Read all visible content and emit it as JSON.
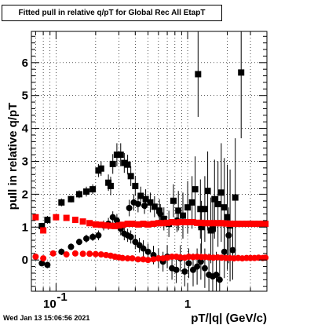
{
  "window": {
    "stamp": "Wed Jan 13 15:06:56 2021"
  },
  "chart_data": {
    "type": "scatter",
    "title": "Fitted pull in relative q/pT  for Global Rec All EtapT",
    "xlabel": "pT/|q| (GeV/c)",
    "ylabel": "pull in relative q/pT",
    "xscale": "log",
    "xlim": [
      0.065,
      4.0
    ],
    "ylim": [
      -0.95,
      6.95
    ],
    "xticks": [
      {
        "v": 0.1,
        "label": "10",
        "exp": "-1"
      },
      {
        "v": 1,
        "label": "1",
        "exp": ""
      }
    ],
    "yticks": [
      0,
      1,
      2,
      3,
      4,
      5,
      6
    ],
    "grid": true,
    "series": [
      {
        "marker": "square",
        "color": "#000000",
        "points": [
          [
            0.078,
            1.03,
            0.1
          ],
          [
            0.086,
            1.22,
            0.12
          ],
          [
            0.11,
            1.75,
            0.12
          ],
          [
            0.13,
            1.85,
            0.1
          ],
          [
            0.15,
            2.0,
            0.12
          ],
          [
            0.17,
            2.08,
            0.15
          ],
          [
            0.19,
            2.15,
            0.15
          ],
          [
            0.21,
            2.72,
            0.2
          ],
          [
            0.22,
            2.78,
            0.22
          ],
          [
            0.25,
            2.35,
            0.25
          ],
          [
            0.26,
            2.25,
            0.28
          ],
          [
            0.27,
            2.92,
            0.3
          ],
          [
            0.29,
            3.2,
            0.35
          ],
          [
            0.31,
            3.2,
            0.35
          ],
          [
            0.33,
            2.95,
            0.3
          ],
          [
            0.35,
            2.9,
            0.3
          ],
          [
            0.37,
            2.55,
            0.3
          ],
          [
            0.4,
            2.25,
            0.3
          ],
          [
            0.44,
            1.95,
            0.28
          ],
          [
            0.48,
            1.85,
            0.3
          ],
          [
            0.52,
            1.75,
            0.3
          ],
          [
            0.56,
            1.62,
            0.32
          ],
          [
            0.61,
            1.5,
            0.35
          ],
          [
            0.66,
            1.25,
            0.35
          ],
          [
            0.72,
            1.1,
            0.4
          ],
          [
            0.78,
            1.8,
            0.5
          ],
          [
            0.85,
            1.5,
            0.6
          ],
          [
            0.92,
            1.35,
            0.7
          ],
          [
            1.0,
            1.6,
            0.8
          ],
          [
            1.08,
            1.75,
            0.8
          ],
          [
            1.14,
            2.15,
            1.0
          ],
          [
            1.2,
            5.65,
            1.3
          ],
          [
            1.27,
            1.0,
            0.8
          ],
          [
            1.35,
            1.55,
            1.0
          ],
          [
            1.42,
            2.1,
            1.2
          ],
          [
            1.5,
            0.9,
            1.0
          ],
          [
            1.6,
            1.85,
            1.2
          ],
          [
            1.7,
            1.7,
            1.3
          ],
          [
            1.8,
            2.05,
            1.5
          ],
          [
            1.9,
            1.6,
            1.5
          ],
          [
            2.0,
            1.3,
            1.6
          ],
          [
            2.1,
            1.05,
            1.7
          ],
          [
            2.3,
            1.9,
            1.8
          ],
          [
            2.55,
            5.7,
            2.0
          ],
          [
            1.55,
            0.95,
            0.9
          ],
          [
            1.25,
            1.55,
            0.9
          ]
        ]
      },
      {
        "marker": "circle",
        "color": "#000000",
        "points": [
          [
            0.078,
            -0.1,
            0.08
          ],
          [
            0.086,
            -0.15,
            0.1
          ],
          [
            0.11,
            0.25,
            0.1
          ],
          [
            0.13,
            0.4,
            0.1
          ],
          [
            0.15,
            0.55,
            0.1
          ],
          [
            0.17,
            0.65,
            0.12
          ],
          [
            0.19,
            0.7,
            0.12
          ],
          [
            0.21,
            0.75,
            0.15
          ],
          [
            0.23,
            1.05,
            0.15
          ],
          [
            0.25,
            1.1,
            0.18
          ],
          [
            0.27,
            1.3,
            0.18
          ],
          [
            0.29,
            1.2,
            0.2
          ],
          [
            0.31,
            0.95,
            0.2
          ],
          [
            0.33,
            0.8,
            0.2
          ],
          [
            0.35,
            0.75,
            0.2
          ],
          [
            0.37,
            0.7,
            0.2
          ],
          [
            0.4,
            0.55,
            0.22
          ],
          [
            0.43,
            0.45,
            0.22
          ],
          [
            0.46,
            0.35,
            0.25
          ],
          [
            0.5,
            0.25,
            0.25
          ],
          [
            0.55,
            0.15,
            0.28
          ],
          [
            0.6,
            0.05,
            0.3
          ],
          [
            0.65,
            -0.05,
            0.3
          ],
          [
            0.7,
            0.1,
            0.35
          ],
          [
            0.76,
            -0.25,
            0.35
          ],
          [
            0.82,
            -0.3,
            0.4
          ],
          [
            0.88,
            0.05,
            0.4
          ],
          [
            0.95,
            -0.35,
            0.45
          ],
          [
            1.02,
            -0.1,
            0.45
          ],
          [
            1.1,
            -0.3,
            0.5
          ],
          [
            1.18,
            -0.2,
            0.55
          ],
          [
            1.26,
            -0.05,
            0.55
          ],
          [
            1.35,
            -0.25,
            0.6
          ],
          [
            1.45,
            -0.45,
            0.65
          ],
          [
            1.55,
            -0.5,
            0.7
          ],
          [
            1.65,
            -0.45,
            0.7
          ],
          [
            1.75,
            -0.6,
            0.75
          ],
          [
            1.9,
            0.25,
            0.8
          ],
          [
            2.05,
            0.75,
            0.85
          ],
          [
            2.2,
            0.3,
            0.9
          ],
          [
            0.36,
            1.58,
            0.25
          ],
          [
            0.39,
            1.75,
            0.25
          ],
          [
            0.42,
            1.7,
            0.25
          ],
          [
            0.47,
            1.65,
            0.25
          ],
          [
            0.62,
            1.4,
            0.3
          ],
          [
            0.83,
            1.2,
            0.35
          ]
        ]
      },
      {
        "marker": "square",
        "color": "#ff0000",
        "points": [
          [
            0.07,
            1.3
          ],
          [
            0.08,
            0.9
          ],
          [
            0.1,
            1.3
          ],
          [
            0.12,
            1.28
          ],
          [
            0.14,
            1.22
          ],
          [
            0.16,
            1.17
          ],
          [
            0.18,
            1.12
          ],
          [
            0.2,
            1.08
          ],
          [
            0.22,
            1.07
          ],
          [
            0.24,
            1.05
          ],
          [
            0.26,
            1.04
          ],
          [
            0.28,
            1.03
          ],
          [
            0.3,
            1.05
          ],
          [
            0.32,
            1.07
          ],
          [
            0.35,
            1.1
          ],
          [
            0.38,
            1.1
          ],
          [
            0.42,
            1.08
          ],
          [
            0.46,
            1.1
          ],
          [
            0.5,
            1.08
          ],
          [
            0.55,
            1.1
          ],
          [
            0.6,
            1.12
          ],
          [
            0.65,
            1.12
          ],
          [
            0.7,
            1.13
          ],
          [
            0.76,
            1.15
          ],
          [
            0.82,
            1.14
          ],
          [
            0.88,
            1.15
          ],
          [
            0.95,
            1.15
          ],
          [
            1.02,
            1.15
          ],
          [
            1.1,
            1.15
          ],
          [
            1.18,
            1.13
          ],
          [
            1.27,
            1.13
          ],
          [
            1.36,
            1.12
          ],
          [
            1.46,
            1.12
          ],
          [
            1.57,
            1.12
          ],
          [
            1.69,
            1.12
          ],
          [
            1.81,
            1.12
          ],
          [
            1.95,
            1.11
          ],
          [
            2.09,
            1.1
          ],
          [
            2.25,
            1.1
          ],
          [
            2.42,
            1.1
          ],
          [
            2.6,
            1.1
          ],
          [
            2.8,
            1.1
          ],
          [
            3.0,
            1.1
          ],
          [
            3.22,
            1.1
          ],
          [
            3.46,
            1.1
          ],
          [
            3.72,
            1.1
          ],
          [
            3.9,
            1.1
          ]
        ]
      },
      {
        "marker": "circle",
        "color": "#ff0000",
        "points": [
          [
            0.07,
            0.1
          ],
          [
            0.08,
            0.05
          ],
          [
            0.095,
            0.2
          ],
          [
            0.12,
            0.17
          ],
          [
            0.14,
            0.2
          ],
          [
            0.16,
            0.19
          ],
          [
            0.18,
            0.19
          ],
          [
            0.2,
            0.18
          ],
          [
            0.22,
            0.17
          ],
          [
            0.24,
            0.15
          ],
          [
            0.26,
            0.13
          ],
          [
            0.28,
            0.1
          ],
          [
            0.3,
            0.08
          ],
          [
            0.32,
            0.06
          ],
          [
            0.35,
            0.05
          ],
          [
            0.38,
            0.05
          ],
          [
            0.42,
            0.02
          ],
          [
            0.46,
            0.02
          ],
          [
            0.5,
            0.0
          ],
          [
            0.55,
            0.02
          ],
          [
            0.6,
            0.05
          ],
          [
            0.65,
            0.05
          ],
          [
            0.7,
            0.07
          ],
          [
            0.76,
            0.1
          ],
          [
            0.82,
            0.1
          ],
          [
            0.88,
            0.08
          ],
          [
            0.95,
            0.07
          ],
          [
            1.02,
            0.1
          ],
          [
            1.1,
            0.09
          ],
          [
            1.18,
            0.1
          ],
          [
            1.27,
            0.09
          ],
          [
            1.36,
            0.09
          ],
          [
            1.46,
            0.08
          ],
          [
            1.57,
            0.07
          ],
          [
            1.69,
            0.08
          ],
          [
            1.81,
            0.07
          ],
          [
            1.95,
            0.06
          ],
          [
            2.09,
            0.06
          ],
          [
            2.25,
            0.05
          ],
          [
            2.42,
            0.06
          ],
          [
            2.6,
            0.05
          ],
          [
            2.8,
            0.06
          ],
          [
            3.0,
            0.06
          ],
          [
            3.22,
            0.06
          ],
          [
            3.46,
            0.07
          ],
          [
            3.72,
            0.06
          ],
          [
            3.9,
            0.07
          ]
        ]
      }
    ]
  }
}
